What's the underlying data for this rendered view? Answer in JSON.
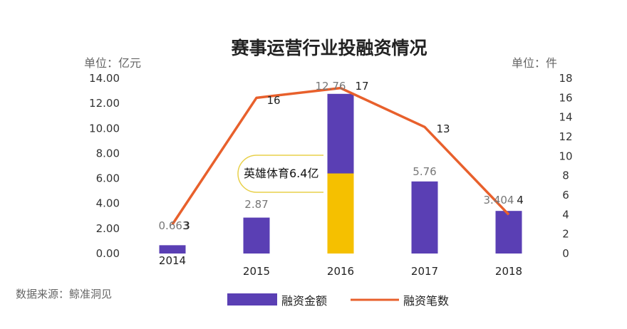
{
  "chart_data": {
    "type": "bar",
    "title": "赛事运营行业投融资情况",
    "left_unit": "单位：亿元",
    "right_unit": "单位：件",
    "categories": [
      "2014",
      "2015",
      "2016",
      "2017",
      "2018"
    ],
    "left_axis": {
      "min": 0,
      "max": 14,
      "ticks": [
        "0.00",
        "2.00",
        "4.00",
        "6.00",
        "8.00",
        "10.00",
        "12.00",
        "14.00"
      ]
    },
    "right_axis": {
      "min": 0,
      "max": 18,
      "ticks": [
        "0",
        "2",
        "4",
        "6",
        "8",
        "10",
        "12",
        "14",
        "16",
        "18"
      ]
    },
    "series": [
      {
        "name": "融资金额",
        "type": "bar",
        "axis": "left",
        "color": "#5a3fb4",
        "values": [
          0.663,
          2.87,
          12.76,
          5.76,
          3.404
        ],
        "labels": [
          "0.663",
          "2.87",
          "12.76",
          "5.76",
          "3.404"
        ]
      },
      {
        "name": "融资笔数",
        "type": "line",
        "axis": "right",
        "color": "#e8602c",
        "values": [
          3,
          16,
          17,
          13,
          4
        ],
        "labels": [
          "3",
          "16",
          "17",
          "13",
          "4"
        ]
      }
    ],
    "highlight": {
      "category": "2016",
      "value": 6.4,
      "color": "#f5c000",
      "label": "英雄体育6.4亿"
    },
    "legend_position": "bottom"
  },
  "source": "数据来源：鲸准洞见"
}
